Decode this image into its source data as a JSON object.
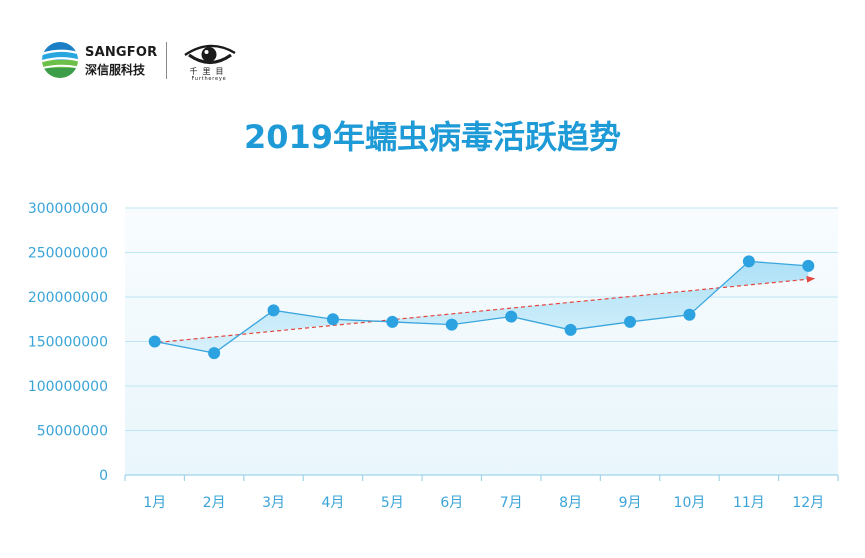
{
  "header": {
    "brand_name": "SANGFOR",
    "brand_cn": "深信服科技",
    "partner_cn": "千里目",
    "partner_en": "Furthereye",
    "brand_icon": "sangfor-globe-icon",
    "partner_icon": "eye-icon"
  },
  "colors": {
    "title": "#1e9ad6",
    "axis_text": "#3aa4d8",
    "grid": "#bfe4f3",
    "axis_line": "#9fd3ea"
  },
  "chart_data": {
    "type": "line",
    "title": "2019年蠕虫病毒活跃趋势",
    "categories": [
      "1月",
      "2月",
      "3月",
      "4月",
      "5月",
      "6月",
      "7月",
      "8月",
      "9月",
      "10月",
      "11月",
      "12月"
    ],
    "series": [
      {
        "values": [
          150000000,
          137000000,
          185000000,
          175000000,
          172000000,
          169000000,
          178000000,
          163000000,
          172000000,
          180000000,
          240000000,
          235000000
        ],
        "color": "#3aa6dd",
        "point_color": "#2da2e0"
      }
    ],
    "y_ticks": [
      0,
      50000000,
      100000000,
      150000000,
      200000000,
      250000000,
      300000000
    ],
    "ylim": [
      0,
      300000000
    ],
    "grid": true,
    "trend_line": {
      "start": 149000000,
      "end": 220000000,
      "color": "#e5473f"
    }
  }
}
